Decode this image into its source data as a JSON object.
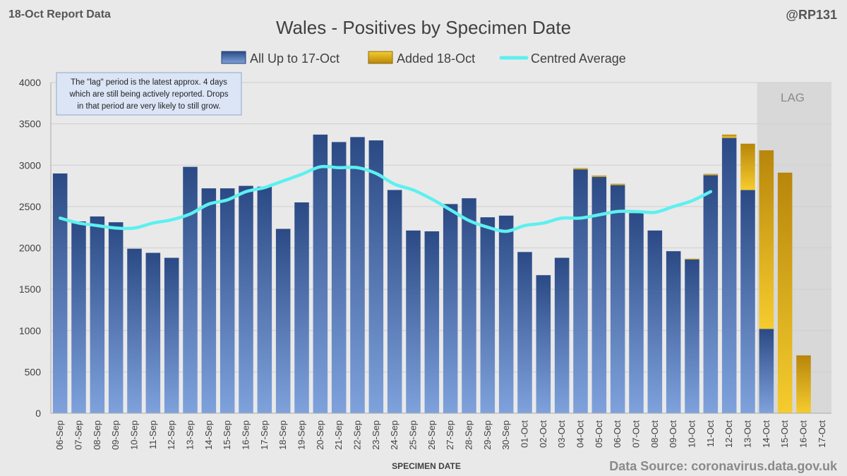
{
  "header": {
    "report_label": "18-Oct Report Data",
    "handle": "@RP131"
  },
  "footer": {
    "source": "Data Source: coronavirus.data.gov.uk"
  },
  "note": {
    "lines": [
      "The \"lag\" period is the latest approx. 4 days",
      "which are still being actively reported.  Drops",
      "in that period are very likely to still grow."
    ]
  },
  "lag_label": "LAG",
  "colors": {
    "background": "#e9e9e9",
    "bar_dark": "#2b4a85",
    "bar_light": "#7fa2dc",
    "added_dark": "#b8860b",
    "added_light": "#f5cc2e",
    "average_line": "#5ef0f0",
    "lag_shade": "#d8d8d8"
  },
  "chart_data": {
    "type": "bar",
    "title": "Wales - Positives by Specimen Date",
    "xlabel": "SPECIMEN DATE",
    "ylabel": "",
    "ylim": [
      0,
      4000
    ],
    "yticks": [
      0,
      500,
      1000,
      1500,
      2000,
      2500,
      3000,
      3500,
      4000
    ],
    "grid": true,
    "legend_position": "top",
    "lag_categories": [
      "14-Oct",
      "15-Oct",
      "16-Oct",
      "17-Oct"
    ],
    "categories": [
      "06-Sep",
      "07-Sep",
      "08-Sep",
      "09-Sep",
      "10-Sep",
      "11-Sep",
      "12-Sep",
      "13-Sep",
      "14-Sep",
      "15-Sep",
      "16-Sep",
      "17-Sep",
      "18-Sep",
      "19-Sep",
      "20-Sep",
      "21-Sep",
      "22-Sep",
      "23-Sep",
      "24-Sep",
      "25-Sep",
      "26-Sep",
      "27-Sep",
      "28-Sep",
      "29-Sep",
      "30-Sep",
      "01-Oct",
      "02-Oct",
      "03-Oct",
      "04-Oct",
      "05-Oct",
      "06-Oct",
      "07-Oct",
      "08-Oct",
      "09-Oct",
      "10-Oct",
      "11-Oct",
      "12-Oct",
      "13-Oct",
      "14-Oct",
      "15-Oct",
      "16-Oct",
      "17-Oct"
    ],
    "series": [
      {
        "name": "All Up to 17-Oct",
        "type": "bar",
        "values": [
          2900,
          2320,
          2380,
          2310,
          1990,
          1940,
          1880,
          2980,
          2720,
          2720,
          2750,
          2740,
          2230,
          2550,
          3370,
          3280,
          3340,
          3300,
          2700,
          2210,
          2200,
          2530,
          2600,
          2370,
          2390,
          1950,
          1670,
          1880,
          2950,
          2860,
          2760,
          2420,
          2210,
          1960,
          1860,
          2880,
          3330,
          2700,
          1020,
          0,
          0,
          0
        ]
      },
      {
        "name": "Added 18-Oct",
        "type": "bar",
        "values": [
          0,
          0,
          0,
          0,
          0,
          0,
          0,
          0,
          0,
          0,
          0,
          0,
          0,
          0,
          0,
          0,
          0,
          0,
          0,
          0,
          0,
          0,
          0,
          0,
          0,
          0,
          0,
          0,
          15,
          15,
          15,
          0,
          0,
          0,
          10,
          15,
          40,
          560,
          2160,
          2910,
          700,
          0
        ]
      },
      {
        "name": "Centred Average",
        "type": "line",
        "values": [
          2360,
          2300,
          2270,
          2240,
          2240,
          2300,
          2340,
          2410,
          2530,
          2580,
          2680,
          2730,
          2810,
          2890,
          2980,
          2970,
          2970,
          2900,
          2770,
          2700,
          2590,
          2460,
          2330,
          2250,
          2200,
          2270,
          2300,
          2360,
          2360,
          2400,
          2440,
          2440,
          2430,
          2500,
          2570,
          2680,
          null,
          null,
          null,
          null,
          null,
          null
        ]
      }
    ]
  }
}
